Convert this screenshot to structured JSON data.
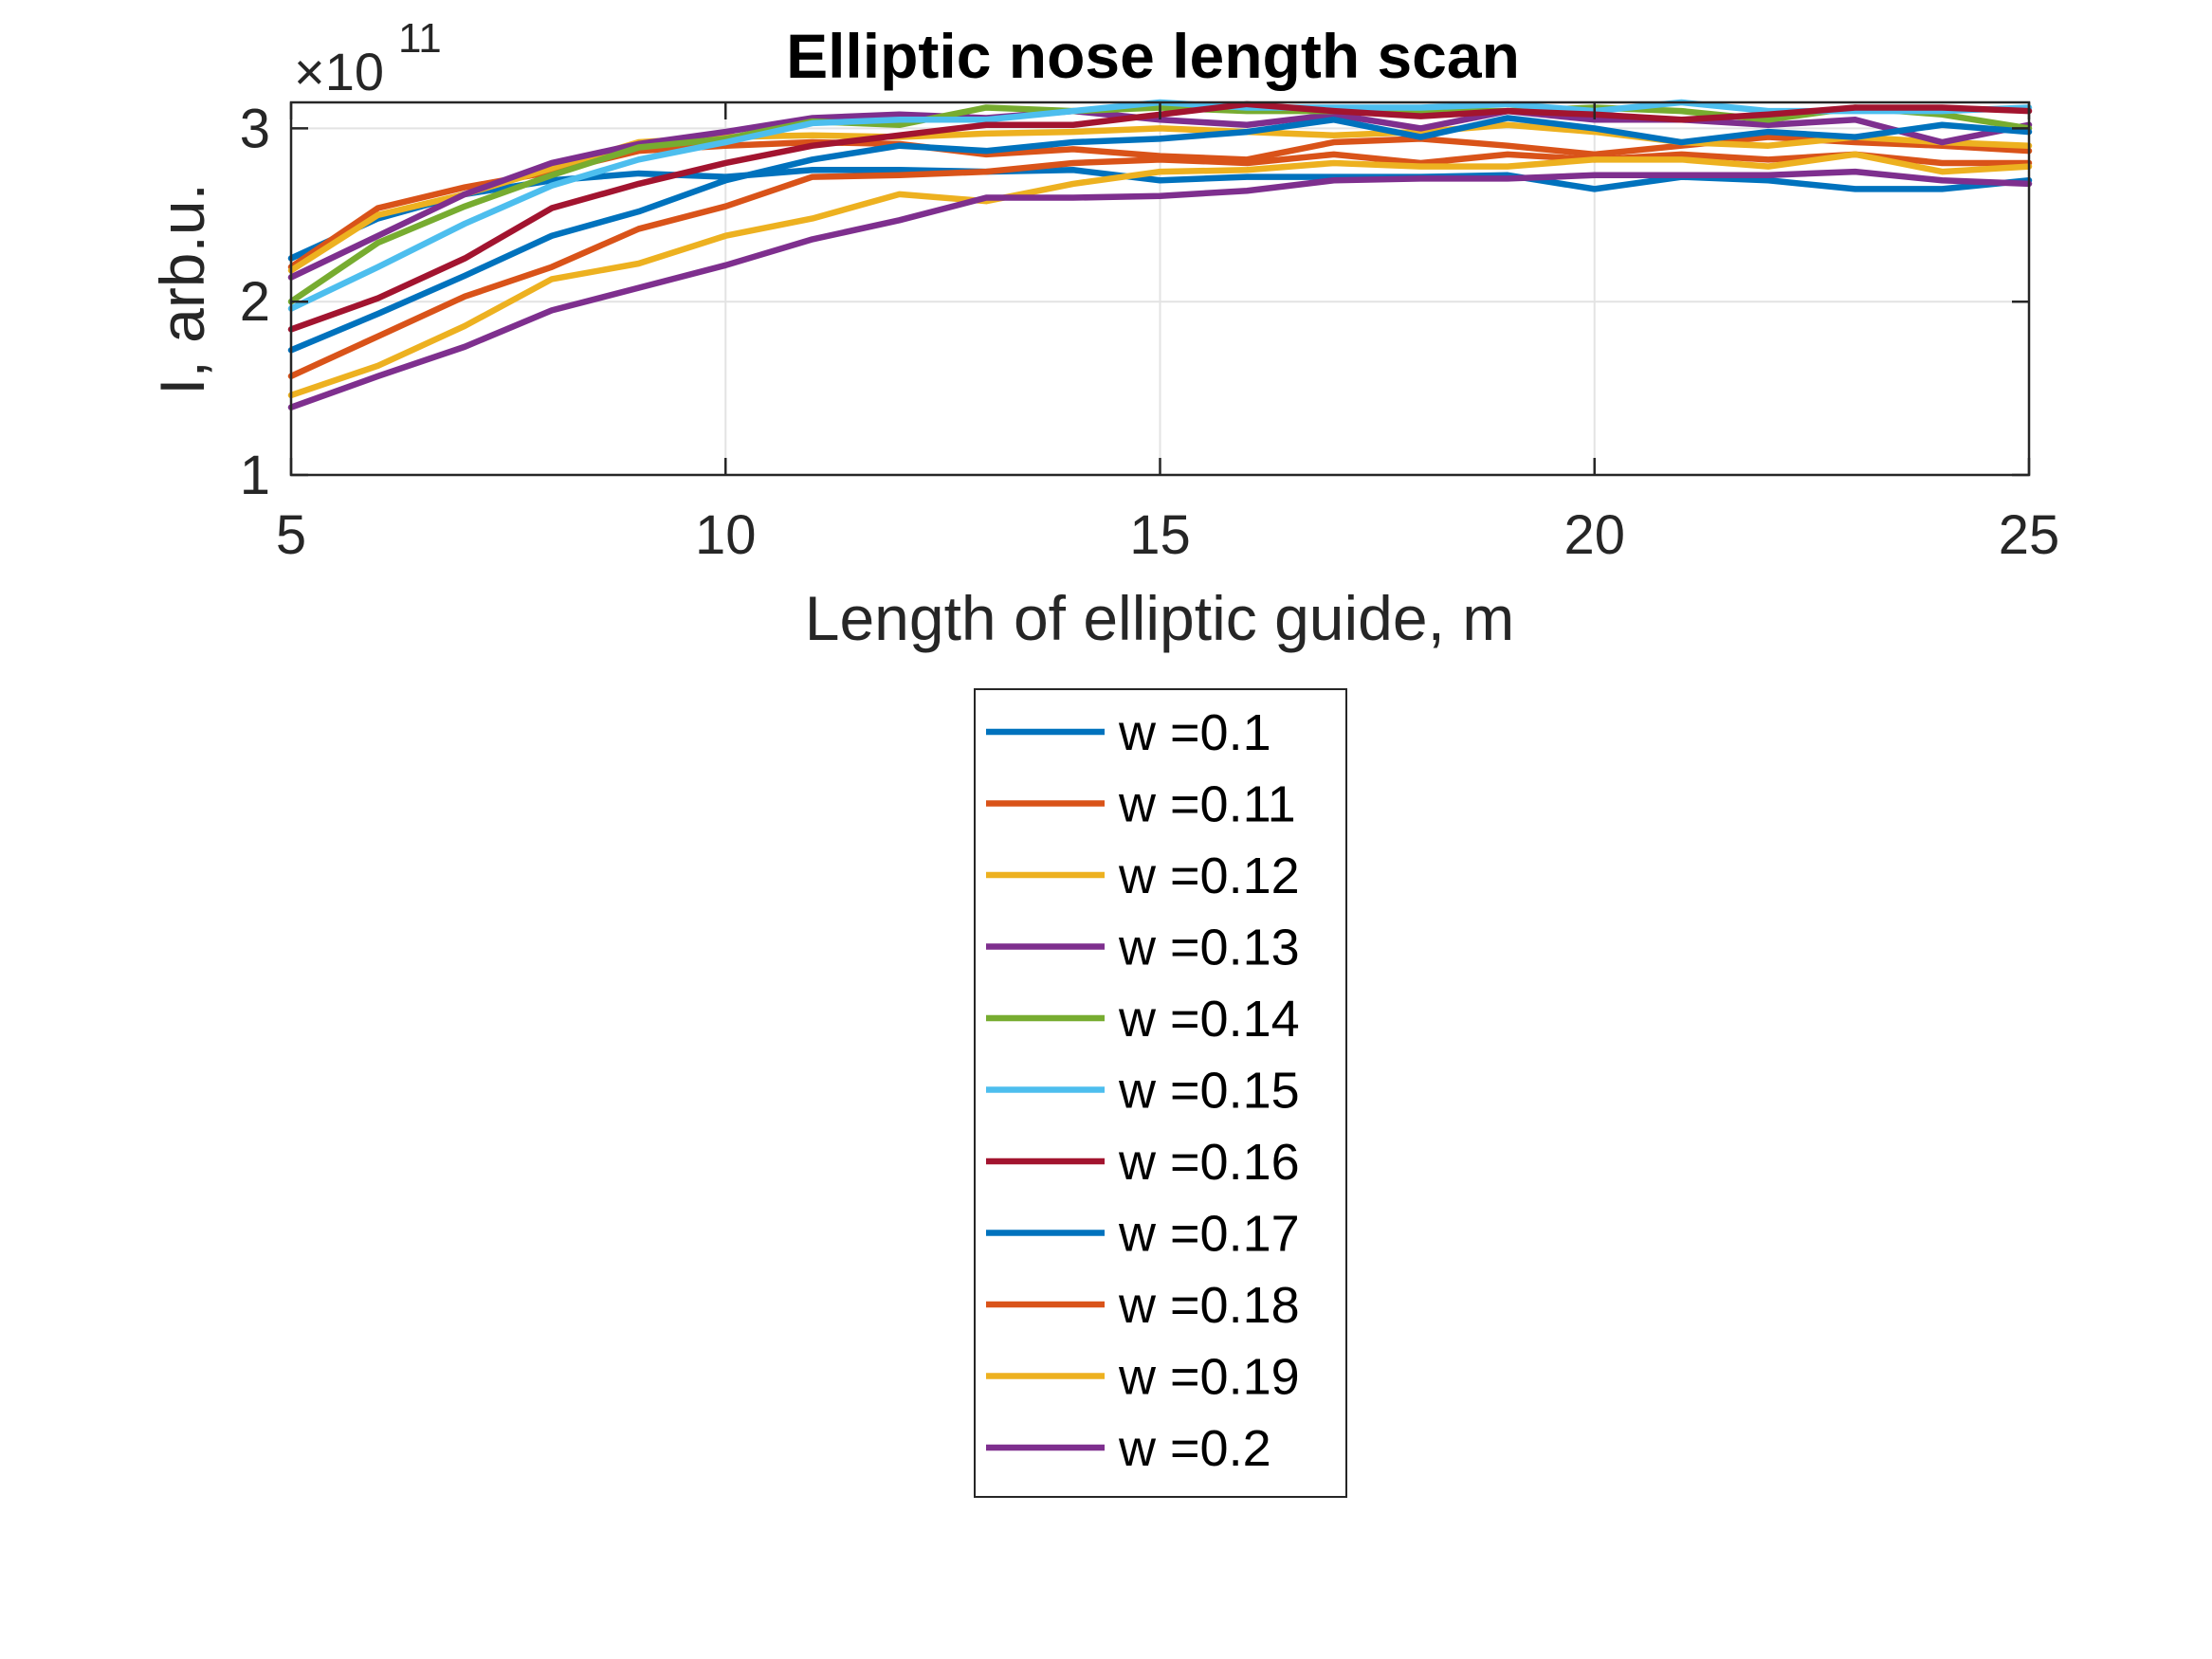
{
  "chart_data": {
    "type": "line",
    "title": "Elliptic nose length scan",
    "xlabel": "Length of elliptic guide, m",
    "ylabel": "I, arb.u.",
    "y_multiplier_label": "×10",
    "y_multiplier_exponent": "11",
    "xlim": [
      5,
      25
    ],
    "ylim": [
      1,
      3.15
    ],
    "x_ticks": [
      "5",
      "10",
      "15",
      "20",
      "25"
    ],
    "y_ticks": [
      "1",
      "2",
      "3"
    ],
    "grid": true,
    "legend_position": "below plot, centered",
    "x": [
      5,
      6,
      7,
      8,
      9,
      10,
      11,
      12,
      13,
      14,
      15,
      16,
      17,
      18,
      19,
      20,
      21,
      22,
      23,
      24,
      25
    ],
    "series": [
      {
        "name": "w =0.1",
        "color": "#0072BD",
        "values": [
          2.25,
          2.48,
          2.62,
          2.7,
          2.74,
          2.72,
          2.76,
          2.76,
          2.75,
          2.76,
          2.7,
          2.72,
          2.72,
          2.72,
          2.73,
          2.65,
          2.72,
          2.7,
          2.65,
          2.65,
          2.7
        ]
      },
      {
        "name": "w =0.11",
        "color": "#D95319",
        "values": [
          2.2,
          2.54,
          2.66,
          2.75,
          2.87,
          2.9,
          2.92,
          2.91,
          2.85,
          2.88,
          2.84,
          2.82,
          2.92,
          2.94,
          2.9,
          2.85,
          2.9,
          2.95,
          2.92,
          2.9,
          2.87
        ]
      },
      {
        "name": "w =0.12",
        "color": "#EDB120",
        "values": [
          2.18,
          2.5,
          2.62,
          2.77,
          2.92,
          2.95,
          2.96,
          2.95,
          2.97,
          2.98,
          3.0,
          2.98,
          2.96,
          2.98,
          3.02,
          2.98,
          2.92,
          2.9,
          2.95,
          2.92,
          2.9
        ]
      },
      {
        "name": "w =0.13",
        "color": "#7E2F8E",
        "values": [
          2.14,
          2.38,
          2.62,
          2.8,
          2.91,
          2.98,
          3.06,
          3.08,
          3.06,
          3.1,
          3.05,
          3.02,
          3.08,
          3.0,
          3.1,
          3.05,
          3.05,
          3.02,
          3.05,
          2.92,
          3.02
        ]
      },
      {
        "name": "w =0.14",
        "color": "#77AC30",
        "values": [
          2.0,
          2.34,
          2.55,
          2.73,
          2.89,
          2.94,
          3.04,
          3.02,
          3.12,
          3.1,
          3.12,
          3.1,
          3.1,
          3.1,
          3.1,
          3.12,
          3.1,
          3.05,
          3.12,
          3.08,
          3.0
        ]
      },
      {
        "name": "w =0.15",
        "color": "#4DBEEE",
        "values": [
          1.96,
          2.2,
          2.45,
          2.67,
          2.82,
          2.92,
          3.03,
          3.05,
          3.05,
          3.1,
          3.15,
          3.12,
          3.12,
          3.12,
          3.14,
          3.1,
          3.15,
          3.1,
          3.1,
          3.1,
          3.12
        ]
      },
      {
        "name": "w =0.16",
        "color": "#A2142F",
        "values": [
          1.84,
          2.02,
          2.25,
          2.54,
          2.68,
          2.8,
          2.9,
          2.96,
          3.02,
          3.02,
          3.08,
          3.14,
          3.1,
          3.07,
          3.1,
          3.08,
          3.05,
          3.08,
          3.12,
          3.12,
          3.1
        ]
      },
      {
        "name": "w =0.17",
        "color": "#0072BD",
        "values": [
          1.72,
          1.93,
          2.15,
          2.38,
          2.52,
          2.7,
          2.82,
          2.9,
          2.87,
          2.92,
          2.94,
          2.98,
          3.05,
          2.95,
          3.06,
          3.0,
          2.92,
          2.98,
          2.95,
          3.02,
          2.98
        ]
      },
      {
        "name": "w =0.18",
        "color": "#D95319",
        "values": [
          1.57,
          1.8,
          2.03,
          2.2,
          2.42,
          2.55,
          2.72,
          2.73,
          2.75,
          2.8,
          2.82,
          2.8,
          2.85,
          2.8,
          2.85,
          2.82,
          2.85,
          2.82,
          2.85,
          2.8,
          2.8
        ]
      },
      {
        "name": "w =0.19",
        "color": "#EDB120",
        "values": [
          1.46,
          1.63,
          1.86,
          2.13,
          2.22,
          2.38,
          2.48,
          2.62,
          2.58,
          2.68,
          2.75,
          2.76,
          2.8,
          2.78,
          2.78,
          2.82,
          2.82,
          2.78,
          2.85,
          2.75,
          2.78
        ]
      },
      {
        "name": "w =0.2",
        "color": "#7E2F8E",
        "values": [
          1.39,
          1.57,
          1.74,
          1.95,
          2.08,
          2.21,
          2.36,
          2.47,
          2.6,
          2.6,
          2.61,
          2.64,
          2.7,
          2.71,
          2.71,
          2.73,
          2.73,
          2.73,
          2.75,
          2.7,
          2.68
        ]
      }
    ]
  }
}
